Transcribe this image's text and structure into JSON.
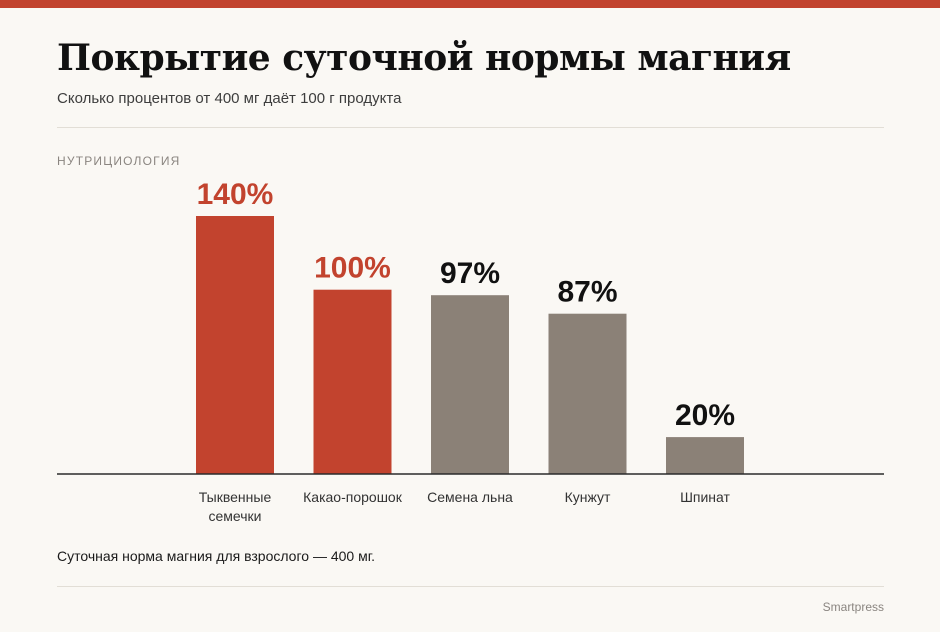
{
  "header": {
    "title": "Покрытие суточной нормы магния",
    "subtitle": "Сколько процентов от 400 мг даёт 100 г продукта",
    "kicker": "НУТРИЦИОЛОГИЯ"
  },
  "colors": {
    "accent": "#c2432e",
    "neutral": "#8b8177",
    "axis": "#2b2b2b"
  },
  "chart_data": {
    "type": "bar",
    "title": "Покрытие суточной нормы магния",
    "subtitle": "Сколько процентов от 400 мг даёт 100 г продукта",
    "xlabel": "",
    "ylabel": "",
    "ylim": [
      0,
      140
    ],
    "grid": false,
    "unit_suffix": "%",
    "categories": [
      [
        "Тыквенные",
        "семечки"
      ],
      [
        "Какао-порошок"
      ],
      [
        "Семена льна"
      ],
      [
        "Кунжут"
      ],
      [
        "Шпинат"
      ]
    ],
    "values": [
      140,
      100,
      97,
      87,
      20
    ],
    "value_labels": [
      "140%",
      "100%",
      "97%",
      "87%",
      "20%"
    ],
    "highlighted": [
      true,
      true,
      false,
      false,
      false
    ]
  },
  "footer": {
    "note": "Суточная норма магния для взрослого — 400 мг.",
    "source": "Smartpress"
  }
}
